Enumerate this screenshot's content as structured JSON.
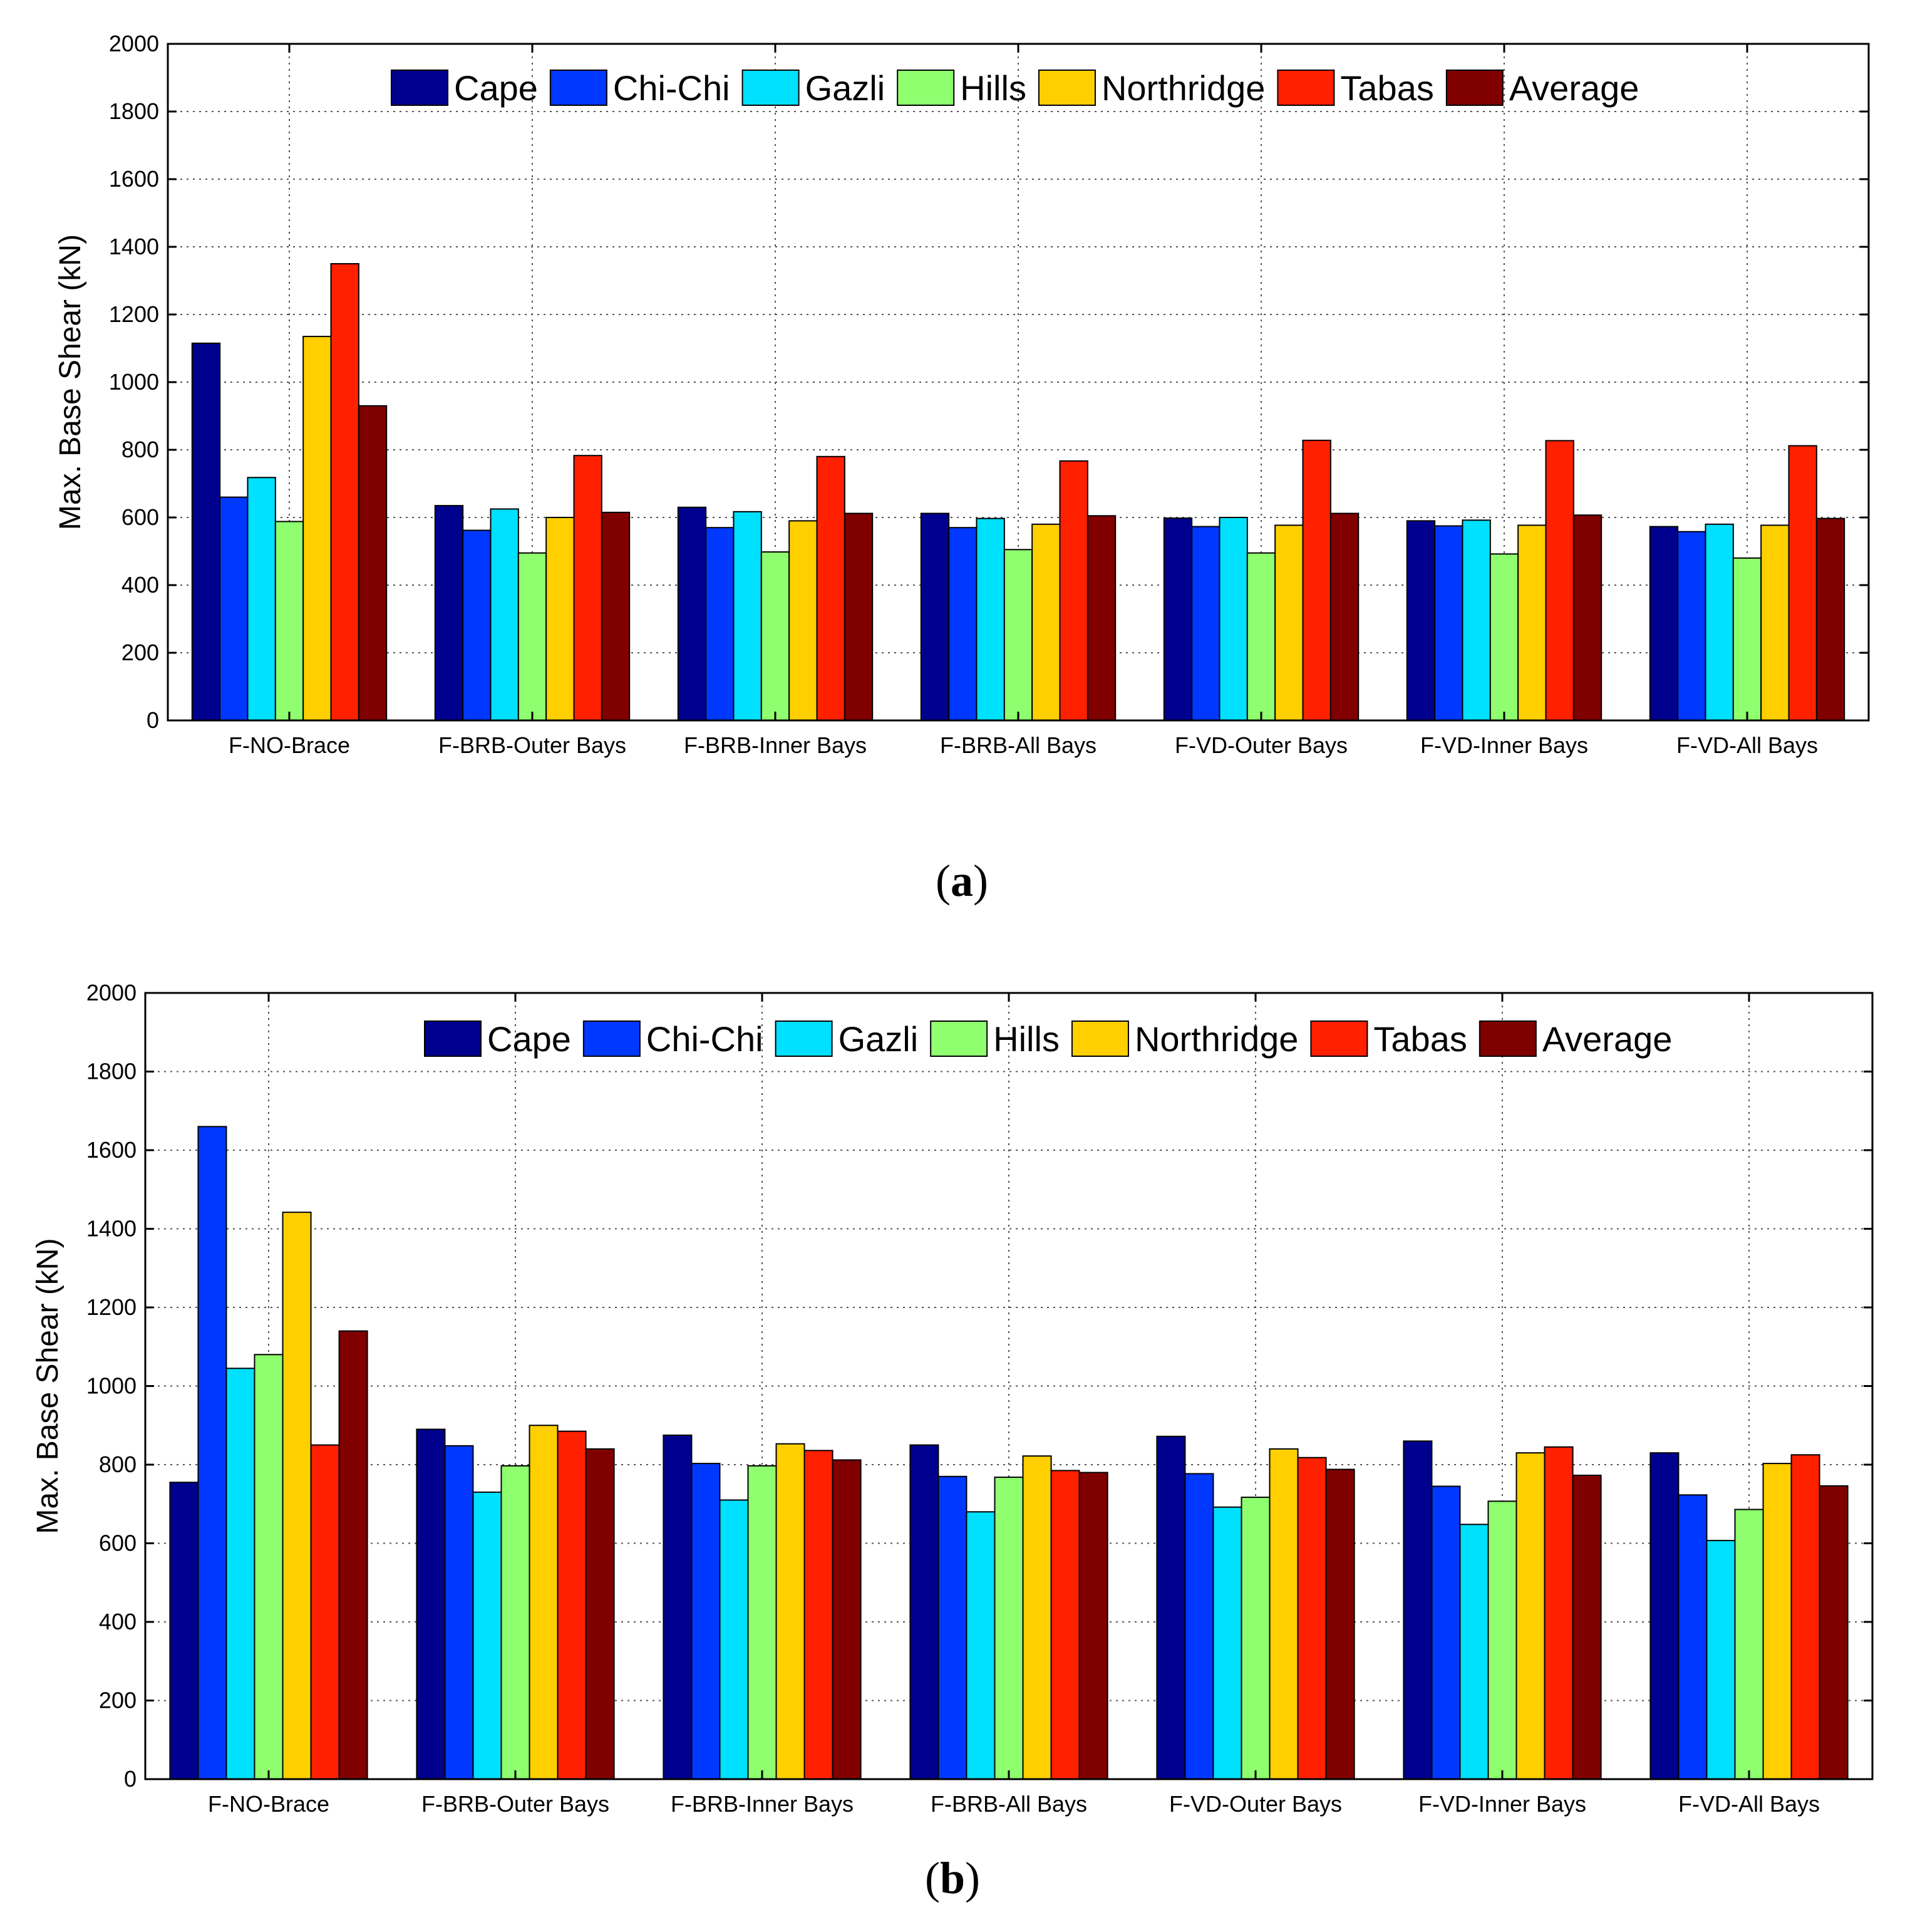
{
  "colors": {
    "Cape": "#00008f",
    "Chi-Chi": "#0038ff",
    "Gazli": "#00e0ff",
    "Hills": "#8fff70",
    "Northridge": "#ffcf00",
    "Tabas": "#ff2000",
    "Average": "#800000"
  },
  "chart_data": [
    {
      "type": "bar",
      "panel": "a",
      "caption": "(a)",
      "title": "",
      "xlabel": "",
      "ylabel": "Max. Base Shear (kN)",
      "ylim": [
        0,
        2000
      ],
      "yticks": [
        0,
        200,
        400,
        600,
        800,
        1000,
        1200,
        1400,
        1600,
        1800,
        2000
      ],
      "grid": true,
      "legend_position": "top",
      "categories": [
        "F-NO-Brace",
        "F-BRB-Outer Bays",
        "F-BRB-Inner Bays",
        "F-BRB-All Bays",
        "F-VD-Outer Bays",
        "F-VD-Inner Bays",
        "F-VD-All Bays"
      ],
      "series": [
        {
          "name": "Cape",
          "values": [
            1115,
            635,
            630,
            612,
            598,
            590,
            573
          ]
        },
        {
          "name": "Chi-Chi",
          "values": [
            660,
            562,
            570,
            570,
            573,
            575,
            558
          ]
        },
        {
          "name": "Gazli",
          "values": [
            718,
            625,
            617,
            597,
            600,
            592,
            580
          ]
        },
        {
          "name": "Hills",
          "values": [
            588,
            495,
            498,
            505,
            495,
            492,
            480
          ]
        },
        {
          "name": "Northridge",
          "values": [
            1135,
            600,
            590,
            580,
            577,
            577,
            577
          ]
        },
        {
          "name": "Tabas",
          "values": [
            1350,
            783,
            780,
            767,
            828,
            827,
            812
          ]
        },
        {
          "name": "Average",
          "values": [
            930,
            615,
            612,
            605,
            612,
            607,
            597
          ]
        }
      ]
    },
    {
      "type": "bar",
      "panel": "b",
      "caption": "(b)",
      "title": "",
      "xlabel": "",
      "ylabel": "Max. Base Shear (kN)",
      "ylim": [
        0,
        2000
      ],
      "yticks": [
        0,
        200,
        400,
        600,
        800,
        1000,
        1200,
        1400,
        1600,
        1800,
        2000
      ],
      "grid": true,
      "legend_position": "top",
      "categories": [
        "F-NO-Brace",
        "F-BRB-Outer Bays",
        "F-BRB-Inner Bays",
        "F-BRB-All Bays",
        "F-VD-Outer Bays",
        "F-VD-Inner Bays",
        "F-VD-All Bays"
      ],
      "series": [
        {
          "name": "Cape",
          "values": [
            755,
            890,
            875,
            850,
            872,
            860,
            830
          ]
        },
        {
          "name": "Chi-Chi",
          "values": [
            1660,
            848,
            803,
            770,
            777,
            745,
            723
          ]
        },
        {
          "name": "Gazli",
          "values": [
            1045,
            730,
            710,
            680,
            692,
            648,
            607
          ]
        },
        {
          "name": "Hills",
          "values": [
            1080,
            797,
            797,
            768,
            717,
            707,
            686
          ]
        },
        {
          "name": "Northridge",
          "values": [
            1442,
            900,
            853,
            822,
            840,
            830,
            803
          ]
        },
        {
          "name": "Tabas",
          "values": [
            850,
            885,
            836,
            785,
            818,
            845,
            825
          ]
        },
        {
          "name": "Average",
          "values": [
            1140,
            840,
            812,
            780,
            788,
            773,
            746
          ]
        }
      ]
    }
  ]
}
